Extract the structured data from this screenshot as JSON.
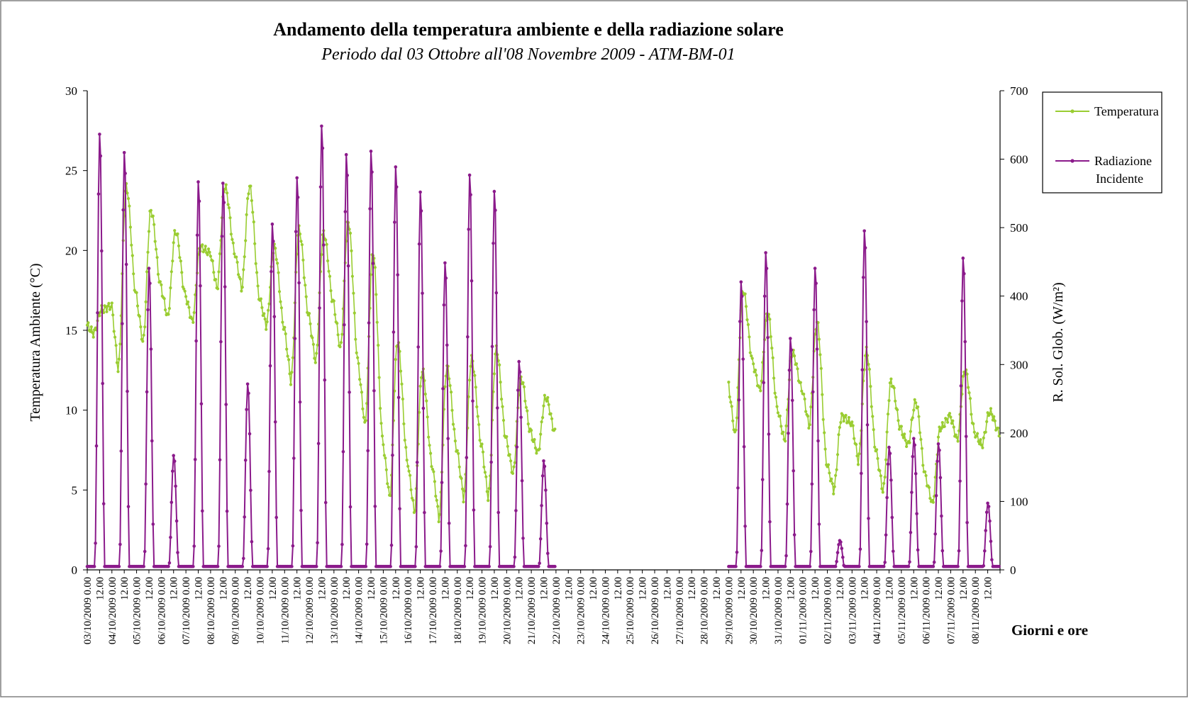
{
  "chart_data": {
    "type": "line",
    "title": "Andamento della temperatura ambiente e della radiazione solare",
    "subtitle": "Periodo dal 03 Ottobre all'08 Novembre 2009 - ATM-BM-01",
    "xlabel": "Giorni e ore",
    "ylabel_left": "Temperatura Ambiente (°C)",
    "ylabel_right": "R. Sol. Glob. (W/m²)",
    "ylim_left": [
      0,
      30
    ],
    "ylim_right": [
      0,
      700
    ],
    "yticks_left": [
      "0",
      "5",
      "10",
      "15",
      "20",
      "25",
      "30"
    ],
    "yticks_right": [
      "0",
      "100",
      "200",
      "300",
      "400",
      "500",
      "600",
      "700"
    ],
    "x_days": [
      "03/10/2009",
      "04/10/2009",
      "05/10/2009",
      "06/10/2009",
      "07/10/2009",
      "08/10/2009",
      "09/10/2009",
      "10/10/2009",
      "11/10/2009",
      "12/10/2009",
      "13/10/2009",
      "14/10/2009",
      "15/10/2009",
      "16/10/2009",
      "17/10/2009",
      "18/10/2009",
      "19/10/2009",
      "20/10/2009",
      "21/10/2009",
      "22/10/2009",
      "23/10/2009",
      "24/10/2009",
      "25/10/2009",
      "26/10/2009",
      "27/10/2009",
      "28/10/2009",
      "29/10/2009",
      "30/10/2009",
      "31/10/2009",
      "01/11/2009",
      "02/11/2009",
      "03/11/2009",
      "04/11/2009",
      "05/11/2009",
      "06/11/2009",
      "07/11/2009",
      "08/11/2009"
    ],
    "x_time_midnight": "0.00",
    "x_time_noon": "12.00",
    "grid": false,
    "legend_position": "top-right",
    "series": [
      {
        "name": "Temperatura",
        "axis": "left",
        "color": "#9ACD32",
        "day_extremes": [
          [
            16.3,
            14.8
          ],
          [
            24.0,
            12.5
          ],
          [
            22.5,
            14.2
          ],
          [
            21.2,
            15.8
          ],
          [
            20.2,
            15.5
          ],
          [
            24.0,
            17.6
          ],
          [
            24.0,
            17.6
          ],
          [
            20.2,
            15.3
          ],
          [
            21.3,
            11.8
          ],
          [
            21.1,
            13.0
          ],
          [
            21.8,
            13.8
          ],
          [
            19.9,
            9.0
          ],
          [
            14.3,
            4.5
          ],
          [
            12.5,
            3.6
          ],
          [
            12.7,
            3.2
          ],
          [
            13.2,
            4.5
          ],
          [
            13.8,
            4.5
          ],
          [
            12.0,
            6.0
          ],
          [
            10.8,
            7.3
          ],
          null,
          null,
          null,
          null,
          null,
          null,
          null,
          [
            17.5,
            8.4
          ],
          [
            16.1,
            11.2
          ],
          [
            13.6,
            8.1
          ],
          [
            15.5,
            9.0
          ],
          [
            9.6,
            5.0
          ],
          [
            13.7,
            6.8
          ],
          [
            11.8,
            4.9
          ],
          [
            10.5,
            7.8
          ],
          [
            8.9,
            4.1
          ],
          [
            12.5,
            8.1
          ],
          [
            9.9,
            7.8
          ]
        ]
      },
      {
        "name": "Radiazione Incidente",
        "axis": "right",
        "color": "#8B1A8B",
        "day_peaks": [
          640,
          613,
          443,
          168,
          570,
          568,
          273,
          508,
          576,
          652,
          610,
          615,
          592,
          555,
          451,
          580,
          556,
          306,
          160,
          null,
          null,
          null,
          null,
          null,
          null,
          null,
          423,
          466,
          340,
          443,
          43,
          498,
          180,
          193,
          185,
          458,
          98
        ],
        "night_value": 5
      }
    ]
  }
}
